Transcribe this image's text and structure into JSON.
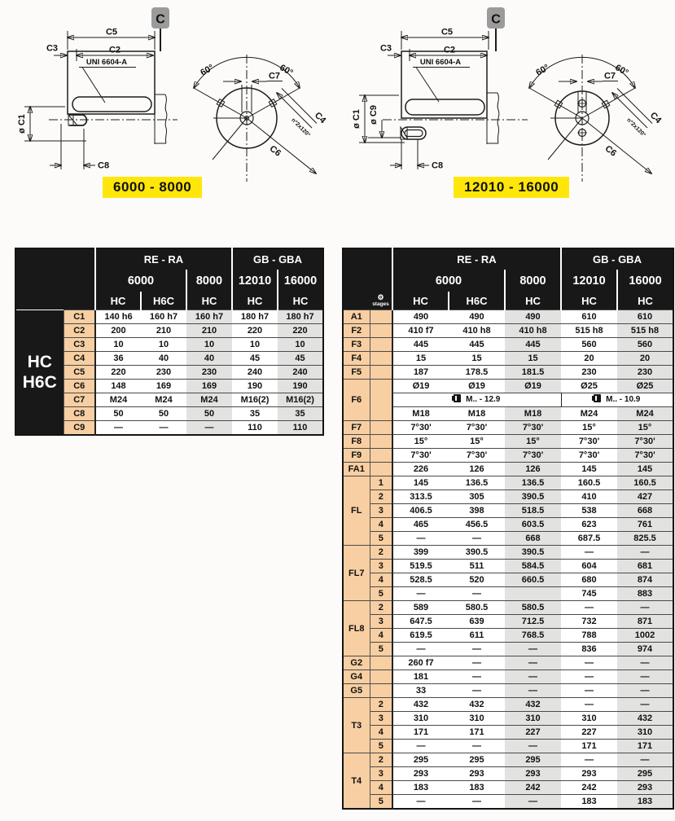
{
  "diagrams": {
    "left": {
      "tab": "C",
      "badge": "6000 - 8000",
      "c5": "C5",
      "c2": "C2",
      "c3": "C3",
      "uni": "UNI 6604-A",
      "c1": "ø C1",
      "c8": "C8",
      "deg1": "60°",
      "deg2": "60°",
      "c7": "C7",
      "c4": "C4",
      "holes_note": "n°2x120°",
      "c6": "C6"
    },
    "right": {
      "tab": "C",
      "badge": "12010 - 16000",
      "c5": "C5",
      "c2": "C2",
      "c3": "C3",
      "uni": "UNI 6604-A",
      "c1": "ø C1",
      "c9": "ø C9",
      "c8": "C8",
      "deg1": "60°",
      "deg2": "60°",
      "c7": "C7",
      "c4": "C4",
      "holes_note": "n°2x120°",
      "c6": "C6"
    }
  },
  "left_table": {
    "group": [
      "HC",
      "H6C"
    ],
    "header": {
      "series": [
        {
          "label": "RE - RA",
          "span": 3
        },
        {
          "label": "GB - GBA",
          "span": 2
        }
      ],
      "sizes": [
        {
          "label": "6000",
          "span": 2
        },
        {
          "label": "8000",
          "span": 1
        },
        {
          "label": "12010",
          "span": 1
        },
        {
          "label": "16000",
          "span": 1
        }
      ],
      "variants": [
        "HC",
        "H6C",
        "HC",
        "HC",
        "HC"
      ]
    },
    "rows": [
      {
        "l": "C1",
        "v": [
          "140 h6",
          "160 h7",
          "160 h7",
          "180 h7",
          "180 h7"
        ]
      },
      {
        "l": "C2",
        "v": [
          "200",
          "210",
          "210",
          "220",
          "220"
        ]
      },
      {
        "l": "C3",
        "v": [
          "10",
          "10",
          "10",
          "10",
          "10"
        ]
      },
      {
        "l": "C4",
        "v": [
          "36",
          "40",
          "40",
          "45",
          "45"
        ]
      },
      {
        "l": "C5",
        "v": [
          "220",
          "230",
          "230",
          "240",
          "240"
        ]
      },
      {
        "l": "C6",
        "v": [
          "148",
          "169",
          "169",
          "190",
          "190"
        ]
      },
      {
        "l": "C7",
        "v": [
          "M24",
          "M24",
          "M24",
          "M16(2)",
          "M16(2)"
        ]
      },
      {
        "l": "C8",
        "v": [
          "50",
          "50",
          "50",
          "35",
          "35"
        ]
      },
      {
        "l": "C9",
        "v": [
          "—",
          "—",
          "—",
          "110",
          "110"
        ]
      }
    ]
  },
  "right_table": {
    "stages_label": "stages",
    "header": {
      "series": [
        {
          "label": "RE - RA",
          "span": 3
        },
        {
          "label": "GB - GBA",
          "span": 2
        }
      ],
      "sizes": [
        {
          "label": "6000",
          "span": 2
        },
        {
          "label": "8000",
          "span": 1
        },
        {
          "label": "12010",
          "span": 1
        },
        {
          "label": "16000",
          "span": 1
        }
      ],
      "variants": [
        "HC",
        "H6C",
        "HC",
        "HC",
        "HC"
      ]
    },
    "rows": [
      {
        "l": "A1",
        "v": [
          "490",
          "490",
          "490",
          "610",
          "610"
        ]
      },
      {
        "l": "F2",
        "v": [
          "410 f7",
          "410 h8",
          "410 h8",
          "515 h8",
          "515 h8"
        ]
      },
      {
        "l": "F3",
        "v": [
          "445",
          "445",
          "445",
          "560",
          "560"
        ]
      },
      {
        "l": "F4",
        "v": [
          "15",
          "15",
          "15",
          "20",
          "20"
        ]
      },
      {
        "l": "F5",
        "v": [
          "187",
          "178.5",
          "181.5",
          "230",
          "230"
        ]
      },
      {
        "l": "F6",
        "ls": 3,
        "v": [
          "Ø19",
          "Ø19",
          "Ø19",
          "Ø25",
          "Ø25"
        ]
      },
      {
        "span": [
          {
            "t": "M.. - 12.9",
            "c": 3
          },
          {
            "t": "M.. - 10.9",
            "c": 2
          }
        ]
      },
      {
        "v": [
          "M18",
          "M18",
          "M18",
          "M24",
          "M24"
        ]
      },
      {
        "l": "F7",
        "v": [
          "7°30'",
          "7°30'",
          "7°30'",
          "15°",
          "15°"
        ]
      },
      {
        "l": "F8",
        "v": [
          "15°",
          "15°",
          "15°",
          "7°30'",
          "7°30'"
        ]
      },
      {
        "l": "F9",
        "v": [
          "7°30'",
          "7°30'",
          "7°30'",
          "7°30'",
          "7°30'"
        ]
      },
      {
        "l": "FA1",
        "v": [
          "226",
          "126",
          "126",
          "145",
          "145"
        ]
      },
      {
        "l": "FL",
        "ls": 5,
        "s": "1",
        "v": [
          "145",
          "136.5",
          "136.5",
          "160.5",
          "160.5"
        ]
      },
      {
        "s": "2",
        "v": [
          "313.5",
          "305",
          "390.5",
          "410",
          "427"
        ]
      },
      {
        "s": "3",
        "v": [
          "406.5",
          "398",
          "518.5",
          "538",
          "668"
        ]
      },
      {
        "s": "4",
        "v": [
          "465",
          "456.5",
          "603.5",
          "623",
          "761"
        ]
      },
      {
        "s": "5",
        "v": [
          "—",
          "—",
          "668",
          "687.5",
          "825.5"
        ]
      },
      {
        "l": "FL7",
        "ls": 4,
        "s": "2",
        "v": [
          "399",
          "390.5",
          "390.5",
          "—",
          "—"
        ]
      },
      {
        "s": "3",
        "v": [
          "519.5",
          "511",
          "584.5",
          "604",
          "681"
        ]
      },
      {
        "s": "4",
        "v": [
          "528.5",
          "520",
          "660.5",
          "680",
          "874"
        ]
      },
      {
        "s": "5",
        "v": [
          "—",
          "—",
          "",
          "745",
          "883"
        ]
      },
      {
        "l": "FL8",
        "ls": 4,
        "s": "2",
        "v": [
          "589",
          "580.5",
          "580.5",
          "—",
          "—"
        ]
      },
      {
        "s": "3",
        "v": [
          "647.5",
          "639",
          "712.5",
          "732",
          "871"
        ]
      },
      {
        "s": "4",
        "v": [
          "619.5",
          "611",
          "768.5",
          "788",
          "1002"
        ]
      },
      {
        "s": "5",
        "v": [
          "—",
          "—",
          "—",
          "836",
          "974"
        ]
      },
      {
        "l": "G2",
        "v": [
          "260 f7",
          "—",
          "—",
          "—",
          "—"
        ]
      },
      {
        "l": "G4",
        "v": [
          "181",
          "—",
          "—",
          "—",
          "—"
        ]
      },
      {
        "l": "G5",
        "v": [
          "33",
          "—",
          "—",
          "—",
          "—"
        ]
      },
      {
        "l": "T3",
        "ls": 4,
        "s": "2",
        "v": [
          "432",
          "432",
          "432",
          "—",
          "—"
        ]
      },
      {
        "s": "3",
        "v": [
          "310",
          "310",
          "310",
          "310",
          "432"
        ]
      },
      {
        "s": "4",
        "v": [
          "171",
          "171",
          "227",
          "227",
          "310"
        ]
      },
      {
        "s": "5",
        "v": [
          "—",
          "—",
          "—",
          "171",
          "171"
        ]
      },
      {
        "l": "T4",
        "ls": 4,
        "s": "2",
        "v": [
          "295",
          "295",
          "295",
          "—",
          "—"
        ]
      },
      {
        "s": "3",
        "v": [
          "293",
          "293",
          "293",
          "293",
          "295"
        ]
      },
      {
        "s": "4",
        "v": [
          "183",
          "183",
          "242",
          "242",
          "293"
        ]
      },
      {
        "s": "5",
        "v": [
          "—",
          "—",
          "—",
          "183",
          "183"
        ]
      }
    ]
  }
}
